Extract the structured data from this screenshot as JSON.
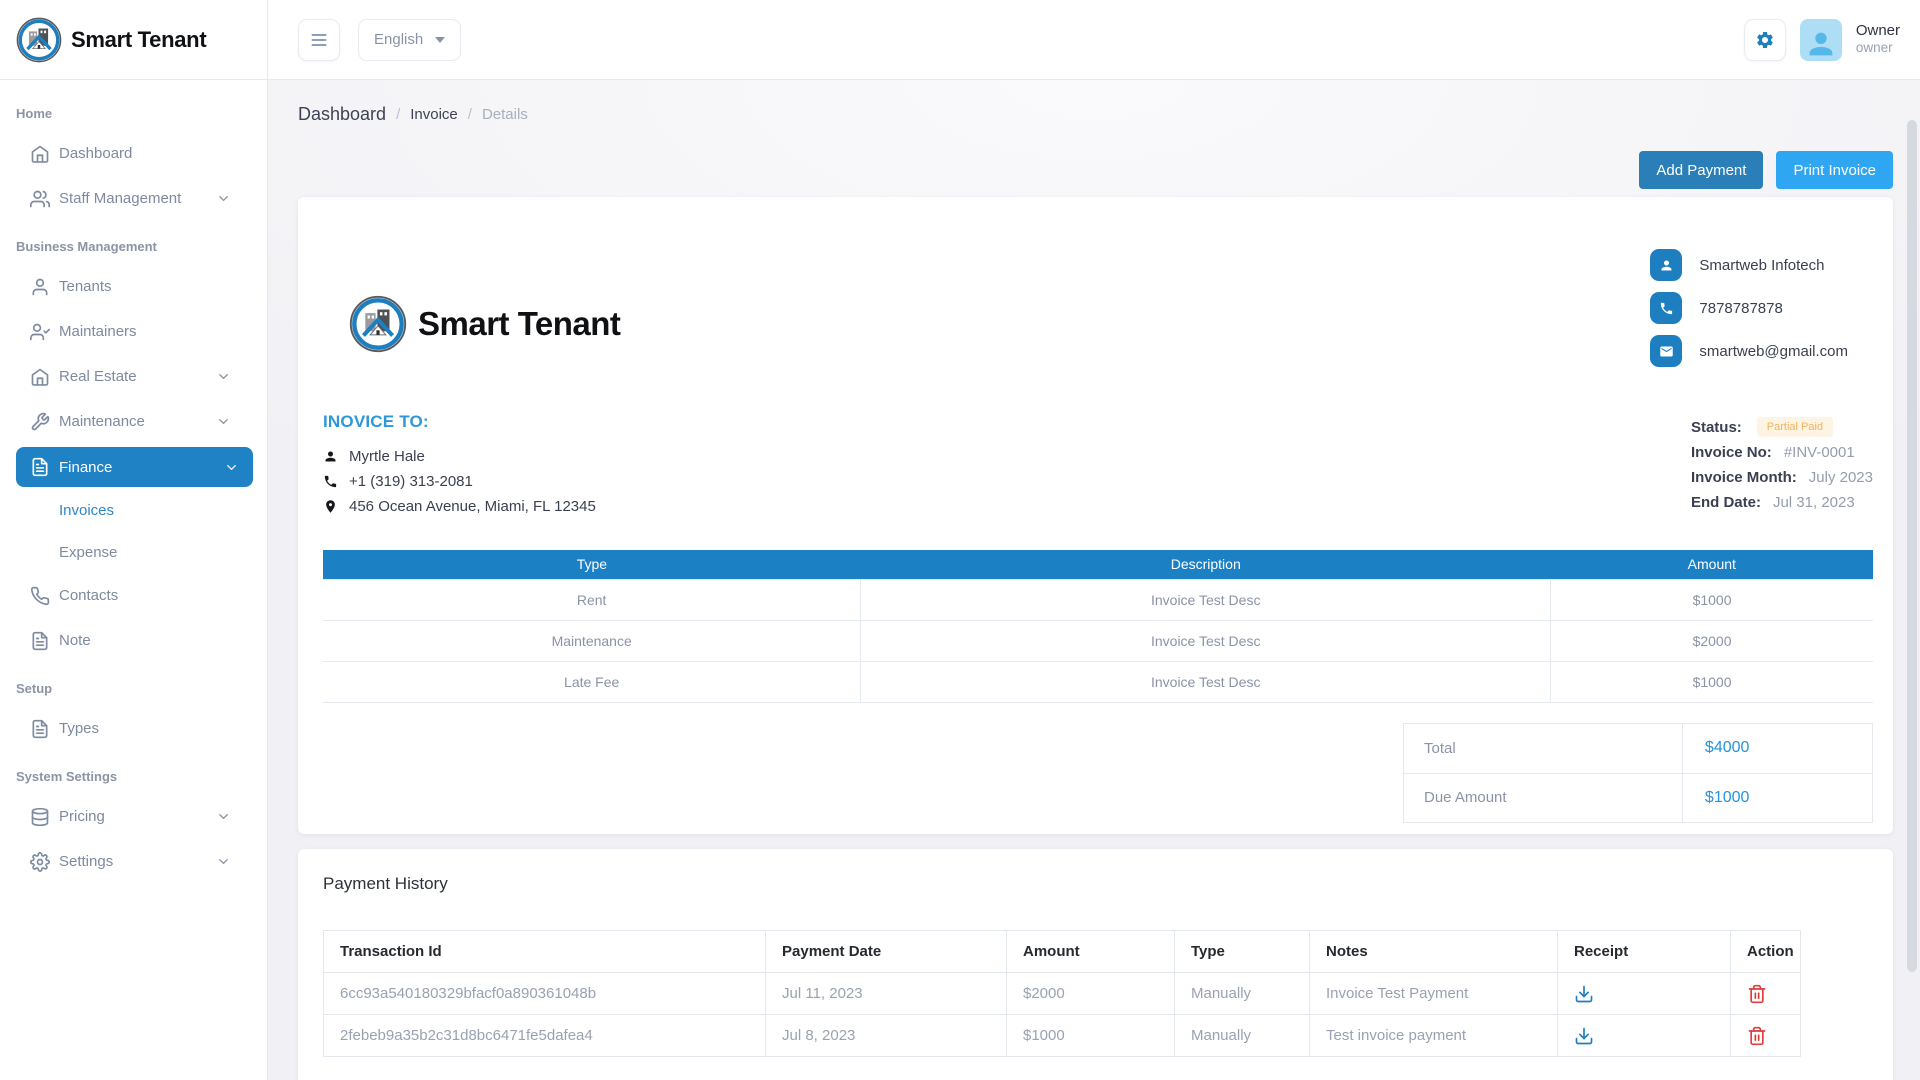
{
  "brand": {
    "name": "Smart Tenant"
  },
  "topbar": {
    "language": "English",
    "user_name": "Owner",
    "user_role": "owner"
  },
  "breadcrumb": {
    "items": [
      "Dashboard",
      "Invoice",
      "Details"
    ]
  },
  "sidebar": {
    "sections": [
      {
        "header": "Home",
        "items": [
          {
            "label": "Dashboard",
            "icon": "home-icon"
          },
          {
            "label": "Staff Management",
            "icon": "users-icon",
            "chevron": true
          }
        ]
      },
      {
        "header": "Business Management",
        "items": [
          {
            "label": "Tenants",
            "icon": "user-icon"
          },
          {
            "label": "Maintainers",
            "icon": "user-check-icon"
          },
          {
            "label": "Real Estate",
            "icon": "home-icon",
            "chevron": true
          },
          {
            "label": "Maintenance",
            "icon": "wrench-icon",
            "chevron": true
          },
          {
            "label": "Finance",
            "icon": "file-icon",
            "chevron": true,
            "active": true
          },
          {
            "label": "Invoices",
            "sub": true,
            "active_sub": true
          },
          {
            "label": "Expense",
            "sub": true
          },
          {
            "label": "Contacts",
            "icon": "phone-icon"
          },
          {
            "label": "Note",
            "icon": "file-icon"
          }
        ]
      },
      {
        "header": "Setup",
        "items": [
          {
            "label": "Types",
            "icon": "file-icon"
          }
        ]
      },
      {
        "header": "System Settings",
        "items": [
          {
            "label": "Pricing",
            "icon": "database-icon",
            "chevron": true
          },
          {
            "label": "Settings",
            "icon": "gear-icon",
            "chevron": true
          }
        ]
      }
    ]
  },
  "actions": {
    "add_payment": "Add Payment",
    "print_invoice": "Print Invoice"
  },
  "invoice": {
    "company": {
      "rows": [
        {
          "icon": "user-solid-icon",
          "text": "Smartweb Infotech"
        },
        {
          "icon": "phone-solid-icon",
          "text": "7878787878"
        },
        {
          "icon": "mail-solid-icon",
          "text": "smartweb@gmail.com"
        }
      ]
    },
    "invoice_to": {
      "heading": "INOVICE TO:",
      "lines": [
        {
          "icon": "user-solid-icon",
          "text": "Myrtle Hale"
        },
        {
          "icon": "phone-solid-icon",
          "text": "+1 (319) 313-2081"
        },
        {
          "icon": "map-pin-solid-icon",
          "text": "456 Ocean Avenue, Miami, FL 12345"
        }
      ]
    },
    "meta": {
      "status_label": "Status:",
      "status": "Partial Paid",
      "invoice_no_label": "Invoice No:",
      "invoice_no": "#INV-0001",
      "invoice_month_label": "Invoice Month:",
      "invoice_month": "July 2023",
      "end_date_label": "End Date:",
      "end_date": "Jul 31, 2023"
    },
    "items_table": {
      "headers": [
        "Type",
        "Description",
        "Amount"
      ],
      "rows": [
        [
          "Rent",
          "Invoice Test Desc",
          "$1000"
        ],
        [
          "Maintenance",
          "Invoice Test Desc",
          "$2000"
        ],
        [
          "Late Fee",
          "Invoice Test Desc",
          "$1000"
        ]
      ]
    },
    "totals": {
      "total_label": "Total",
      "total": "$4000",
      "due_label": "Due Amount",
      "due": "$1000"
    }
  },
  "payment_history": {
    "title": "Payment History",
    "headers": [
      "Transaction Id",
      "Payment Date",
      "Amount",
      "Type",
      "Notes",
      "Receipt",
      "Action"
    ],
    "receipt_icon": "download-icon",
    "action_icon": "trash-icon",
    "rows": [
      {
        "transaction_id": "6cc93a540180329bfacf0a890361048b",
        "payment_date": "Jul 11, 2023",
        "amount": "$2000",
        "type": "Manually",
        "notes": "Invoice Test Payment"
      },
      {
        "transaction_id": "2febeb9a35b2c31d8bc6471fe5dafea4",
        "payment_date": "Jul 8, 2023",
        "amount": "$1000",
        "type": "Manually",
        "notes": "Test invoice payment"
      }
    ]
  },
  "colors": {
    "accent_blue": "#1d7ec0",
    "table_header_blue": "#1b80c4",
    "button_primary": "#2a7fb8",
    "button_info": "#2ea6f2",
    "link_blue": "#2693d8",
    "heading_blue": "#2e97d8",
    "badge_bg": "#fdf4e3",
    "badge_text": "#f3b35f",
    "danger_red": "#e23c3c"
  }
}
